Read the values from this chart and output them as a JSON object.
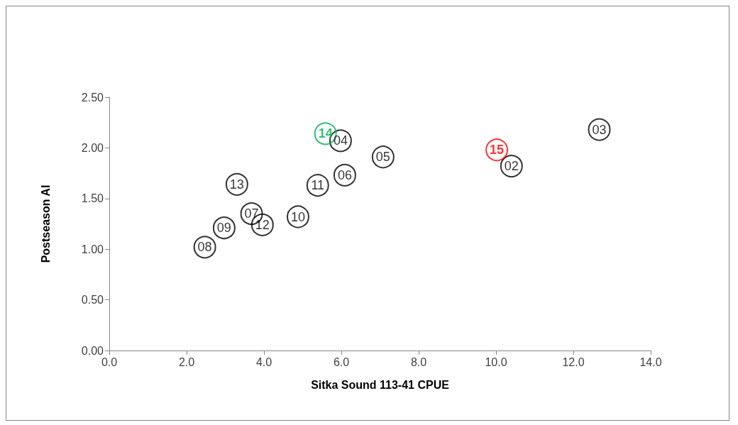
{
  "chart_data": {
    "type": "scatter",
    "xlabel": "Sitka Sound 113-41 CPUE",
    "ylabel": "Postseason AI",
    "xlim": [
      0,
      14
    ],
    "xticks": [
      {
        "value": 0,
        "label": "0.0"
      },
      {
        "value": 2,
        "label": "2.0"
      },
      {
        "value": 4,
        "label": "4.0"
      },
      {
        "value": 6,
        "label": "6.0"
      },
      {
        "value": 8,
        "label": "8.0"
      },
      {
        "value": 10,
        "label": "10.0"
      },
      {
        "value": 12,
        "label": "12.0"
      },
      {
        "value": 14,
        "label": "14.0"
      }
    ],
    "ylim": [
      0,
      2.5
    ],
    "yticks": [
      {
        "value": 0,
        "label": "0.00"
      },
      {
        "value": 0.5,
        "label": "0.50"
      },
      {
        "value": 1,
        "label": "1.00"
      },
      {
        "value": 1.5,
        "label": "1.50"
      },
      {
        "value": 2,
        "label": "2.00"
      },
      {
        "value": 2.5,
        "label": "2.50"
      }
    ],
    "grid": false,
    "marker": "circle",
    "series": [
      {
        "color": "#000000",
        "x": [
          10.4,
          12.67,
          5.98,
          7.08,
          6.09,
          3.68,
          2.47,
          2.97,
          4.88,
          5.39,
          3.96,
          3.3
        ],
        "values": [
          1.82,
          2.18,
          2.07,
          1.91,
          1.73,
          1.35,
          1.02,
          1.21,
          1.32,
          1.63,
          1.24,
          1.64
        ]
      },
      {
        "color": "#00b050",
        "x": [
          5.59
        ],
        "values": [
          2.14
        ]
      },
      {
        "color": "#ff0000",
        "x": [
          10.02
        ],
        "values": [
          1.98
        ]
      }
    ],
    "annotations": [
      {
        "text": "02",
        "x": 10.4,
        "y": 1.82
      },
      {
        "text": "03",
        "x": 12.67,
        "y": 2.18
      },
      {
        "text": "04",
        "x": 5.98,
        "y": 2.07
      },
      {
        "text": "05",
        "x": 7.08,
        "y": 1.91
      },
      {
        "text": "06",
        "x": 6.09,
        "y": 1.73
      },
      {
        "text": "07",
        "x": 3.68,
        "y": 1.35
      },
      {
        "text": "08",
        "x": 2.47,
        "y": 1.02
      },
      {
        "text": "09",
        "x": 2.97,
        "y": 1.21
      },
      {
        "text": "10",
        "x": 4.88,
        "y": 1.32
      },
      {
        "text": "11",
        "x": 5.39,
        "y": 1.63
      },
      {
        "text": "12",
        "x": 3.96,
        "y": 1.24
      },
      {
        "text": "13",
        "x": 3.3,
        "y": 1.64
      },
      {
        "text": "14",
        "x": 5.59,
        "y": 2.14
      },
      {
        "text": "15",
        "x": 10.02,
        "y": 1.98
      }
    ]
  }
}
